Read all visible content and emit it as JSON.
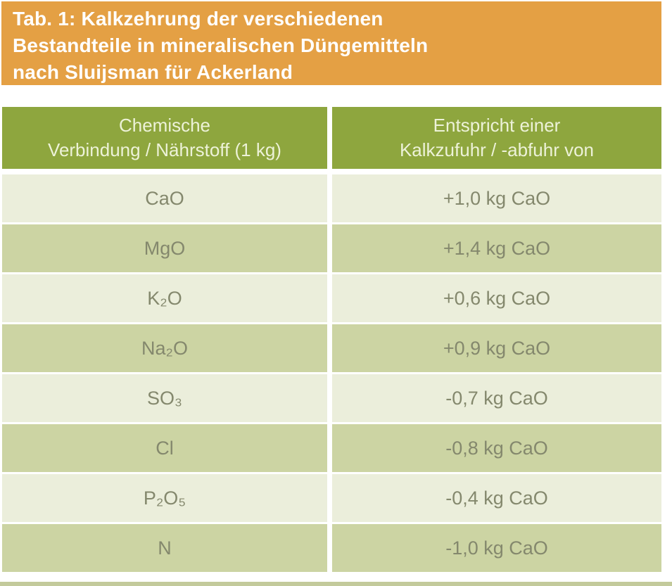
{
  "caption": {
    "lines": [
      "Tab. 1: Kalkzehrung der verschiedenen",
      "Bestandteile in mineralischen Düngemitteln",
      "nach Sluijsman für Ackerland"
    ]
  },
  "table": {
    "headers": [
      {
        "line1": "Chemische",
        "line2": "Verbindung / Nährstoff (1 kg)"
      },
      {
        "line1": "Entspricht einer",
        "line2": "Kalkzufuhr / -abfuhr von"
      }
    ],
    "rows": [
      {
        "compound": "CaO",
        "value": "+1,0 kg CaO"
      },
      {
        "compound": "MgO",
        "value": "+1,4 kg CaO"
      },
      {
        "compound": "K₂O",
        "value": "+0,6 kg CaO"
      },
      {
        "compound": "Na₂O",
        "value": "+0,9 kg CaO"
      },
      {
        "compound": "SO₃",
        "value": "-0,7 kg CaO"
      },
      {
        "compound": "Cl",
        "value": "-0,8 kg CaO"
      },
      {
        "compound": "P₂O₅",
        "value": "-0,4 kg CaO"
      },
      {
        "compound": "N",
        "value": "-1,0 kg CaO"
      }
    ]
  },
  "colors": {
    "caption_bg": "#e4a044",
    "caption_text": "#ffffff",
    "header_bg": "#8ea63e",
    "header_text": "#edf2d8",
    "row_light_bg": "#ebeedb",
    "row_dark_bg": "#ccd4a3",
    "row_text": "#84886d",
    "bottom_strip": "#c3ca9b"
  }
}
